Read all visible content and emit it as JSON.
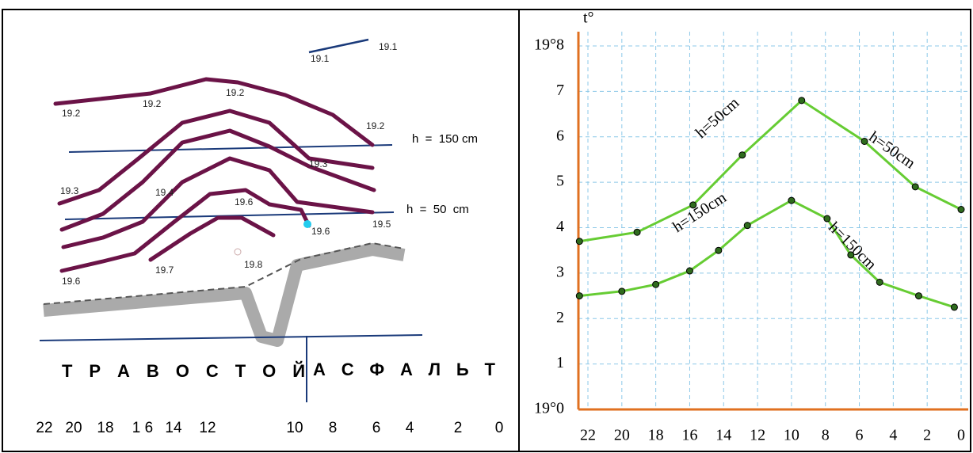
{
  "diagram": {
    "point_labels": [
      "19.1",
      "19.1",
      "19.2",
      "19.2",
      "19.2",
      "19.2",
      "19.3",
      "19.4",
      "19.3",
      "19.6",
      "19.6",
      "19.5",
      "19.6",
      "19.7",
      "19.8"
    ],
    "level_labels": [
      "h  =  150 cm",
      "h  =  50  cm"
    ],
    "surface_labels": [
      "Т Р А В О С Т О Й",
      "А С Ф А Л Ь Т"
    ],
    "axis_labels": [
      "22",
      "20",
      "18",
      "1 6",
      "14",
      "12",
      "10",
      "8",
      "6",
      "4",
      "2",
      "0"
    ]
  },
  "chart_data": {
    "type": "line",
    "y_label": "t°",
    "xlim": [
      22,
      0
    ],
    "xticks": [
      22,
      20,
      18,
      16,
      14,
      12,
      10,
      8,
      6,
      4,
      2,
      0
    ],
    "ylim": [
      0,
      8
    ],
    "yticks": [
      {
        "value": 0,
        "label": "19°0"
      },
      1,
      2,
      3,
      4,
      5,
      6,
      7,
      {
        "value": 8,
        "label": "19°8"
      }
    ],
    "grid": true,
    "series": [
      {
        "name": "h=50cm",
        "color": "#66cc33",
        "x": [
          22.5,
          19.1,
          15.8,
          12.9,
          9.4,
          5.7,
          2.7,
          0
        ],
        "values": [
          3.7,
          3.9,
          4.5,
          5.6,
          6.8,
          5.9,
          4.9,
          4.4
        ]
      },
      {
        "name": "h=150cm",
        "color": "#66cc33",
        "x": [
          22.5,
          20.0,
          18.0,
          16.0,
          14.3,
          12.6,
          10.0,
          7.9,
          6.5,
          4.8,
          2.5,
          0.4
        ],
        "values": [
          2.5,
          2.6,
          2.75,
          3.05,
          3.5,
          4.05,
          4.6,
          4.2,
          3.4,
          2.8,
          2.5,
          2.25
        ]
      }
    ],
    "annotations": [
      "h=50cm",
      "h=50cm",
      "h=150cm",
      "h=150cm"
    ]
  }
}
